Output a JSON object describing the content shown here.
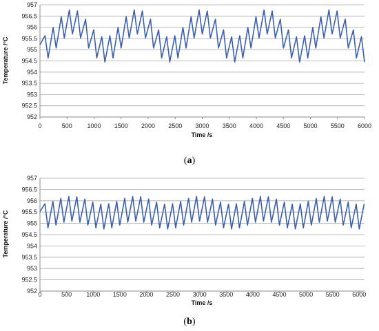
{
  "chart_data": [
    {
      "type": "line",
      "panel_label": "a",
      "xlabel": "Time /s",
      "ylabel": "Temperature /°C",
      "xlim": [
        0,
        6000
      ],
      "ylim": [
        952,
        957
      ],
      "x_ticks": [
        "0",
        "500",
        "1000",
        "1500",
        "2000",
        "2500",
        "3000",
        "3500",
        "4000",
        "4500",
        "5000",
        "5500",
        "6000"
      ],
      "y_ticks": [
        "952",
        "952.5",
        "953",
        "953.5",
        "954",
        "954.5",
        "955",
        "955.5",
        "956",
        "956.5",
        "957"
      ],
      "grid": true,
      "line_color": "#3a5fb0",
      "series": [
        {
          "fast_period_s": 150,
          "slow_period_s": 1200,
          "amplitude_fast_C": 0.55,
          "min_trough_C": 954.4,
          "max_peak_C": 956.85,
          "mean_min_C": 955.0,
          "mean_max_C": 956.25,
          "first_slow_peak_s": 600
        }
      ]
    },
    {
      "type": "line",
      "panel_label": "b",
      "xlabel": "Time /s",
      "ylabel": "Temperature /°C",
      "xlim": [
        0,
        6100
      ],
      "ylim": [
        952,
        957
      ],
      "x_ticks": [
        "0",
        "500",
        "1000",
        "1500",
        "2000",
        "2500",
        "3000",
        "3500",
        "4000",
        "4500",
        "5000",
        "5500",
        "6000"
      ],
      "y_ticks": [
        "952",
        "952.5",
        "953",
        "953.5",
        "954",
        "954.5",
        "955",
        "955.5",
        "956",
        "956.5",
        "957"
      ],
      "grid": true,
      "line_color": "#3a5fb0",
      "series": [
        {
          "fast_period_s": 150,
          "slow_period_s": 1200,
          "amplitude_fast_C": 0.55,
          "min_trough_C": 954.4,
          "max_peak_C": 956.35,
          "mean_min_C": 955.3,
          "mean_max_C": 955.65,
          "first_slow_peak_s": 600
        }
      ]
    }
  ]
}
